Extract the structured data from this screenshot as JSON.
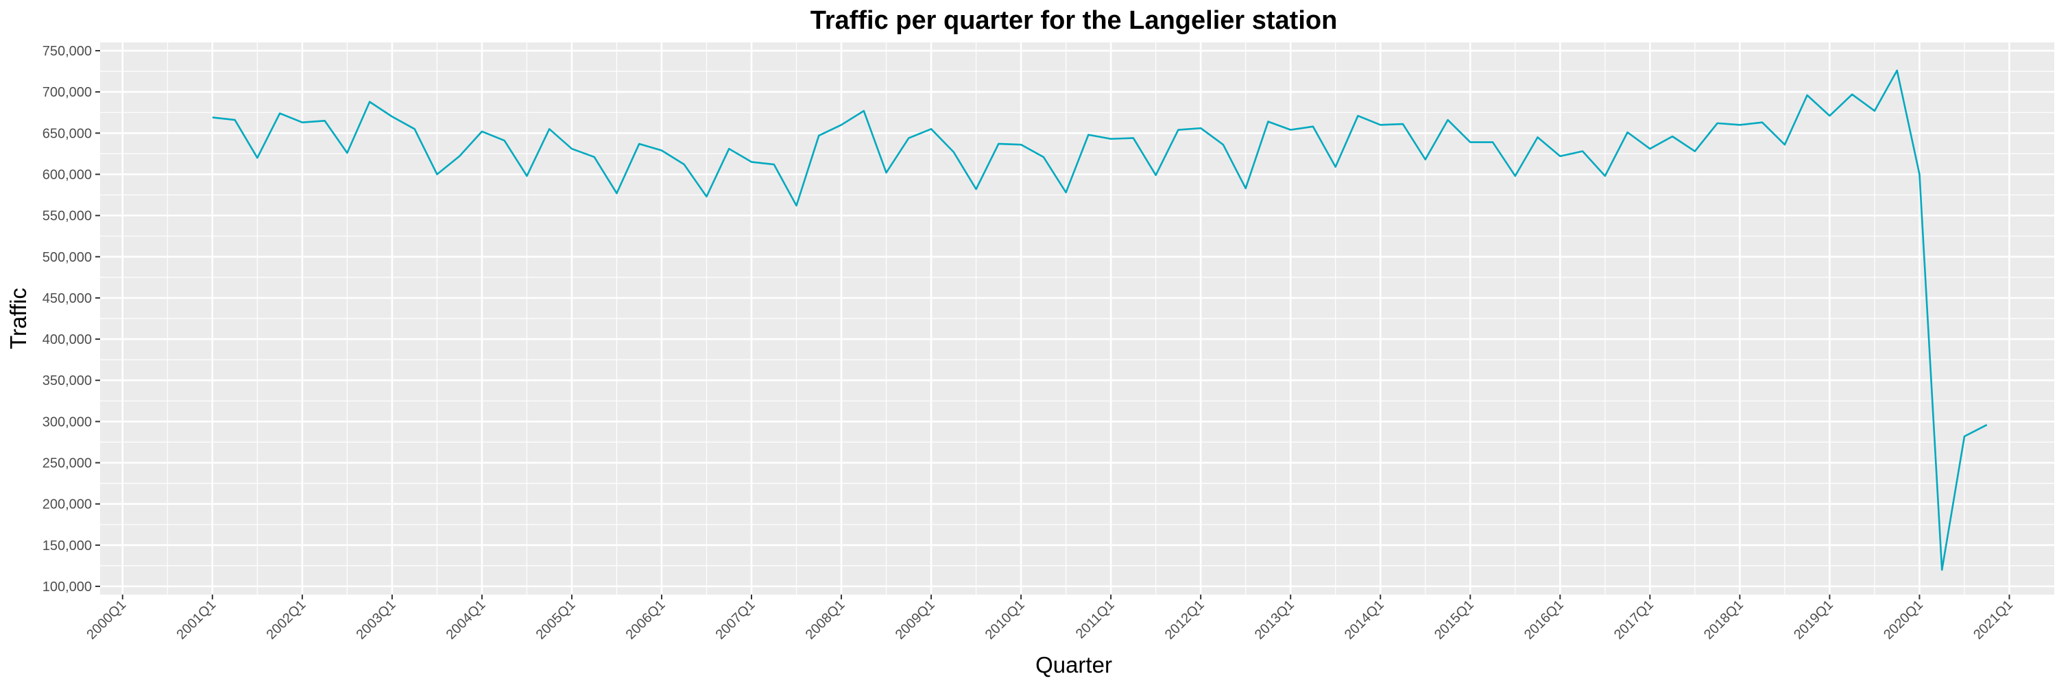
{
  "chart_data": {
    "type": "line",
    "title": "Traffic per quarter for the Langelier station",
    "xlabel": "Quarter",
    "ylabel": "Traffic",
    "x_tick_labels": [
      "2000Q1",
      "2001Q1",
      "2002Q1",
      "2003Q1",
      "2004Q1",
      "2005Q1",
      "2006Q1",
      "2007Q1",
      "2008Q1",
      "2009Q1",
      "2010Q1",
      "2011Q1",
      "2012Q1",
      "2013Q1",
      "2014Q1",
      "2015Q1",
      "2016Q1",
      "2017Q1",
      "2018Q1",
      "2019Q1",
      "2020Q1",
      "2021Q1"
    ],
    "y_ticks": [
      100000,
      150000,
      200000,
      250000,
      300000,
      350000,
      400000,
      450000,
      500000,
      550000,
      600000,
      650000,
      700000,
      750000
    ],
    "y_tick_labels": [
      "100,000",
      "150,000",
      "200,000",
      "250,000",
      "300,000",
      "350,000",
      "400,000",
      "450,000",
      "500,000",
      "550,000",
      "600,000",
      "650,000",
      "700,000",
      "750,000"
    ],
    "ylim": [
      90000,
      760000
    ],
    "xlim": [
      "1999Q4",
      "2021Q3"
    ],
    "grid": true,
    "series": [
      {
        "color": "#00A9BF",
        "x": [
          "2001Q1",
          "2001Q2",
          "2001Q3",
          "2001Q4",
          "2002Q1",
          "2002Q2",
          "2002Q3",
          "2002Q4",
          "2003Q1",
          "2003Q2",
          "2003Q3",
          "2003Q4",
          "2004Q1",
          "2004Q2",
          "2004Q3",
          "2004Q4",
          "2005Q1",
          "2005Q2",
          "2005Q3",
          "2005Q4",
          "2006Q1",
          "2006Q2",
          "2006Q3",
          "2006Q4",
          "2007Q1",
          "2007Q2",
          "2007Q3",
          "2007Q4",
          "2008Q1",
          "2008Q2",
          "2008Q3",
          "2008Q4",
          "2009Q1",
          "2009Q2",
          "2009Q3",
          "2009Q4",
          "2010Q1",
          "2010Q2",
          "2010Q3",
          "2010Q4",
          "2011Q1",
          "2011Q2",
          "2011Q3",
          "2011Q4",
          "2012Q1",
          "2012Q2",
          "2012Q3",
          "2012Q4",
          "2013Q1",
          "2013Q2",
          "2013Q3",
          "2013Q4",
          "2014Q1",
          "2014Q2",
          "2014Q3",
          "2014Q4",
          "2015Q1",
          "2015Q2",
          "2015Q3",
          "2015Q4",
          "2016Q1",
          "2016Q2",
          "2016Q3",
          "2016Q4",
          "2017Q1",
          "2017Q2",
          "2017Q3",
          "2017Q4",
          "2018Q1",
          "2018Q2",
          "2018Q3",
          "2018Q4",
          "2019Q1",
          "2019Q2",
          "2019Q3",
          "2019Q4",
          "2020Q1",
          "2020Q2",
          "2020Q3",
          "2020Q4"
        ],
        "values": [
          669000,
          666000,
          620000,
          674000,
          663000,
          665000,
          626000,
          688000,
          670000,
          655000,
          600000,
          622000,
          652000,
          641000,
          598000,
          655000,
          631000,
          621000,
          577000,
          637000,
          629000,
          612000,
          573000,
          631000,
          615000,
          612000,
          562000,
          647000,
          660000,
          677000,
          602000,
          644000,
          655000,
          627000,
          582000,
          637000,
          636000,
          621000,
          578000,
          648000,
          643000,
          644000,
          599000,
          654000,
          656000,
          636000,
          583000,
          664000,
          654000,
          658000,
          609000,
          671000,
          660000,
          661000,
          618000,
          666000,
          639000,
          639000,
          598000,
          645000,
          622000,
          628000,
          598000,
          651000,
          631000,
          646000,
          628000,
          662000,
          660000,
          663000,
          636000,
          696000,
          671000,
          697000,
          677000,
          726000,
          600000,
          120000,
          282000,
          296000
        ]
      }
    ]
  }
}
